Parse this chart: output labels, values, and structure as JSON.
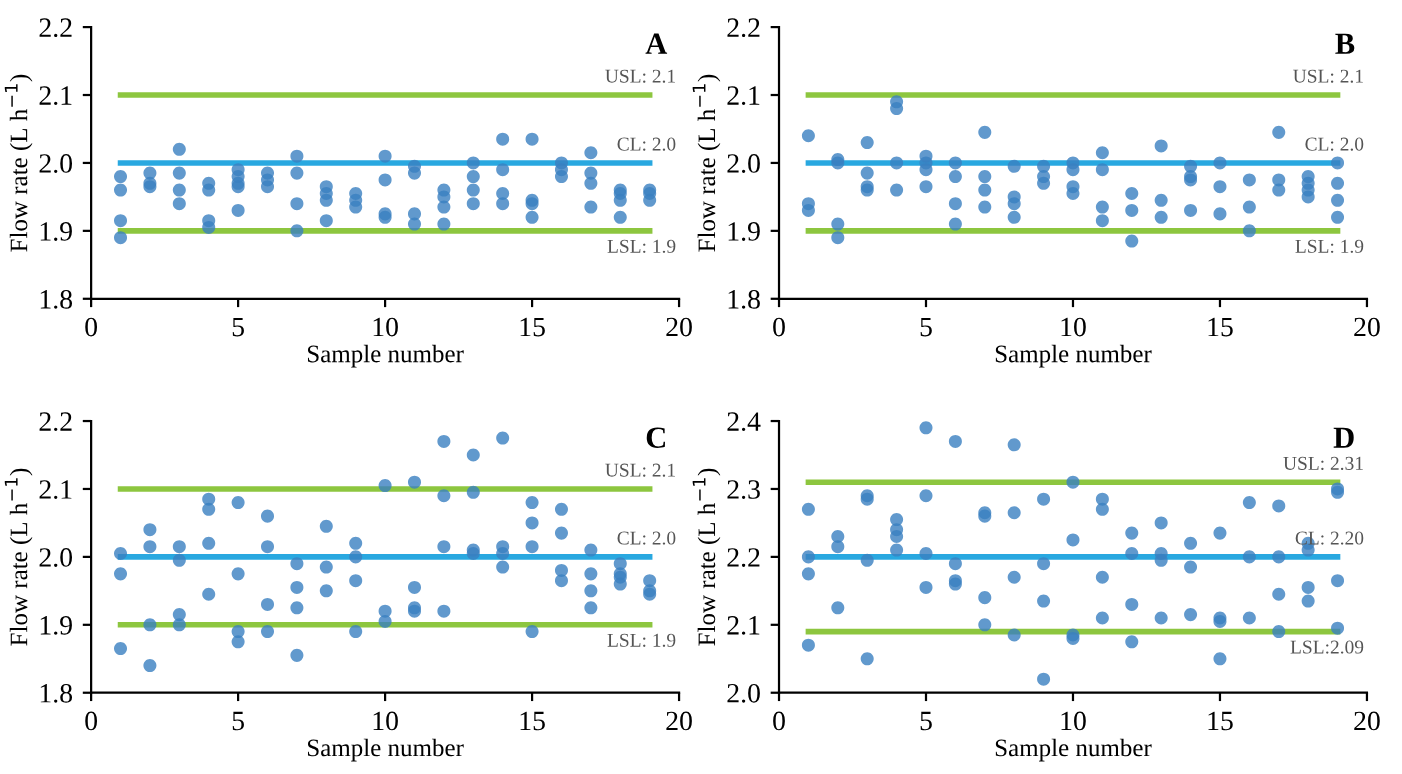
{
  "chart_data": [
    {
      "type": "scatter",
      "xlabel": "Sample number",
      "ylabel": "Flow rate (L h$^{−1}$)",
      "annotations": [
        "A"
      ],
      "xlim": [
        0,
        20
      ],
      "xticks": [
        0,
        5,
        10,
        15,
        20
      ],
      "ylim": [
        1.8,
        2.2
      ],
      "yticks": [
        {
          "value": 1.8,
          "label": "1.8"
        },
        {
          "value": 1.9,
          "label": "1.9"
        },
        {
          "value": 2.0,
          "label": "2.0"
        },
        {
          "value": 2.1,
          "label": "2.1"
        },
        {
          "value": 2.2,
          "label": "2.2"
        }
      ],
      "marker": "circle",
      "grid": false,
      "ref_lines": [
        {
          "axis": "y",
          "value": 2.1,
          "label": "USL: 2.1",
          "color": "#8dc63f"
        },
        {
          "axis": "y",
          "value": 2.0,
          "label": "CL: 2.0",
          "color": "#29a8e0"
        },
        {
          "axis": "y",
          "value": 1.9,
          "label": "LSL: 1.9",
          "color": "#8dc63f"
        }
      ],
      "series": [
        {
          "color": "#3a7fc0",
          "x": [
            1,
            1,
            1,
            1,
            2,
            2,
            2,
            3,
            3,
            3,
            3,
            4,
            4,
            4,
            4,
            5,
            5,
            5,
            5,
            5,
            6,
            6,
            6,
            7,
            7,
            7,
            7,
            8,
            8,
            8,
            8,
            9,
            9,
            9,
            10,
            10,
            10,
            10,
            11,
            11,
            11,
            11,
            12,
            12,
            12,
            12,
            13,
            13,
            13,
            13,
            14,
            14,
            14,
            14,
            15,
            15,
            15,
            15,
            16,
            16,
            16,
            17,
            17,
            17,
            17,
            18,
            18,
            18,
            18,
            19,
            19,
            19
          ],
          "values": [
            1.98,
            1.96,
            1.915,
            1.89,
            1.985,
            1.97,
            1.965,
            2.02,
            1.985,
            1.96,
            1.94,
            1.97,
            1.96,
            1.915,
            1.905,
            1.99,
            1.98,
            1.97,
            1.965,
            1.93,
            1.985,
            1.975,
            1.965,
            2.01,
            1.985,
            1.94,
            1.9,
            1.965,
            1.955,
            1.945,
            1.915,
            1.955,
            1.945,
            1.935,
            2.01,
            1.975,
            1.925,
            1.92,
            1.995,
            1.985,
            1.925,
            1.91,
            1.96,
            1.95,
            1.935,
            1.91,
            2.0,
            1.98,
            1.96,
            1.94,
            2.035,
            1.99,
            1.955,
            1.94,
            2.035,
            1.945,
            1.94,
            1.92,
            2.0,
            1.99,
            1.98,
            2.015,
            1.985,
            1.97,
            1.935,
            1.96,
            1.955,
            1.945,
            1.92,
            1.96,
            1.955,
            1.945
          ]
        }
      ]
    },
    {
      "type": "scatter",
      "xlabel": "Sample number",
      "ylabel": "Flow rate (L h$^{−1}$)",
      "annotations": [
        "B"
      ],
      "xlim": [
        0,
        20
      ],
      "xticks": [
        0,
        5,
        10,
        15,
        20
      ],
      "ylim": [
        1.8,
        2.2
      ],
      "yticks": [
        {
          "value": 1.8,
          "label": "1.8"
        },
        {
          "value": 1.9,
          "label": "1.9"
        },
        {
          "value": 2.0,
          "label": "2.0"
        },
        {
          "value": 2.1,
          "label": "2.1"
        },
        {
          "value": 2.2,
          "label": "2.2"
        }
      ],
      "marker": "circle",
      "grid": false,
      "ref_lines": [
        {
          "axis": "y",
          "value": 2.1,
          "label": "USL: 2.1",
          "color": "#8dc63f"
        },
        {
          "axis": "y",
          "value": 2.0,
          "label": "CL: 2.0",
          "color": "#29a8e0"
        },
        {
          "axis": "y",
          "value": 1.9,
          "label": "LSL: 1.9",
          "color": "#8dc63f"
        }
      ],
      "series": [
        {
          "color": "#3a7fc0",
          "x": [
            1,
            1,
            1,
            2,
            2,
            2,
            2,
            3,
            3,
            3,
            3,
            4,
            4,
            4,
            4,
            5,
            5,
            5,
            5,
            6,
            6,
            6,
            6,
            7,
            7,
            7,
            7,
            8,
            8,
            8,
            8,
            9,
            9,
            9,
            10,
            10,
            10,
            10,
            11,
            11,
            11,
            11,
            12,
            12,
            12,
            13,
            13,
            13,
            14,
            14,
            14,
            14,
            15,
            15,
            15,
            16,
            16,
            16,
            17,
            17,
            17,
            18,
            18,
            18,
            18,
            19,
            19,
            19,
            19
          ],
          "values": [
            2.04,
            1.94,
            1.93,
            2.005,
            2.0,
            1.91,
            1.89,
            2.03,
            1.985,
            1.965,
            1.96,
            2.09,
            2.08,
            2.0,
            1.96,
            2.01,
            2.0,
            1.99,
            1.965,
            2.0,
            1.98,
            1.94,
            1.91,
            2.045,
            1.98,
            1.96,
            1.935,
            1.995,
            1.95,
            1.94,
            1.92,
            1.995,
            1.98,
            1.97,
            2.0,
            1.99,
            1.965,
            1.955,
            2.015,
            1.99,
            1.935,
            1.915,
            1.955,
            1.93,
            1.885,
            2.025,
            1.945,
            1.92,
            1.995,
            1.98,
            1.975,
            1.93,
            2.0,
            1.965,
            1.925,
            1.975,
            1.935,
            1.9,
            2.045,
            1.975,
            1.96,
            1.98,
            1.97,
            1.96,
            1.95,
            2.0,
            1.97,
            1.945,
            1.92
          ]
        }
      ]
    },
    {
      "type": "scatter",
      "xlabel": "Sample number",
      "ylabel": "Flow rate (L h$^{−1}$)",
      "annotations": [
        "C"
      ],
      "xlim": [
        0,
        20
      ],
      "xticks": [
        0,
        5,
        10,
        15,
        20
      ],
      "ylim": [
        1.8,
        2.2
      ],
      "yticks": [
        {
          "value": 1.8,
          "label": "1.8"
        },
        {
          "value": 1.9,
          "label": "1.9"
        },
        {
          "value": 2.0,
          "label": "2.0"
        },
        {
          "value": 2.1,
          "label": "2.1"
        },
        {
          "value": 2.2,
          "label": "2.2"
        }
      ],
      "marker": "circle",
      "grid": false,
      "ref_lines": [
        {
          "axis": "y",
          "value": 2.1,
          "label": "USL: 2.1",
          "color": "#8dc63f"
        },
        {
          "axis": "y",
          "value": 2.0,
          "label": "CL: 2.0",
          "color": "#29a8e0"
        },
        {
          "axis": "y",
          "value": 1.9,
          "label": "LSL: 1.9",
          "color": "#8dc63f"
        }
      ],
      "series": [
        {
          "color": "#3a7fc0",
          "x": [
            1,
            1,
            1,
            2,
            2,
            2,
            2,
            3,
            3,
            3,
            3,
            4,
            4,
            4,
            4,
            5,
            5,
            5,
            5,
            6,
            6,
            6,
            6,
            7,
            7,
            7,
            7,
            8,
            8,
            8,
            9,
            9,
            9,
            9,
            10,
            10,
            10,
            11,
            11,
            11,
            11,
            12,
            12,
            12,
            12,
            13,
            13,
            13,
            13,
            14,
            14,
            14,
            14,
            15,
            15,
            15,
            15,
            16,
            16,
            16,
            16,
            17,
            17,
            17,
            17,
            18,
            18,
            18,
            18,
            19,
            19,
            19
          ],
          "values": [
            2.005,
            1.975,
            1.865,
            2.04,
            2.015,
            1.9,
            1.84,
            2.015,
            1.995,
            1.915,
            1.9,
            2.085,
            2.07,
            2.02,
            1.945,
            2.08,
            1.975,
            1.89,
            1.875,
            2.06,
            2.015,
            1.93,
            1.89,
            1.99,
            1.955,
            1.925,
            1.855,
            2.045,
            1.985,
            1.95,
            2.02,
            2.0,
            1.965,
            1.89,
            2.105,
            1.92,
            1.905,
            2.11,
            1.955,
            1.925,
            1.92,
            2.17,
            2.09,
            2.015,
            1.92,
            2.15,
            2.095,
            2.01,
            2.005,
            2.175,
            2.015,
            2.005,
            1.985,
            2.08,
            2.05,
            2.015,
            1.89,
            2.07,
            2.035,
            1.98,
            1.965,
            2.01,
            1.975,
            1.95,
            1.925,
            1.99,
            1.975,
            1.97,
            1.96,
            1.965,
            1.95,
            1.945
          ]
        }
      ]
    },
    {
      "type": "scatter",
      "xlabel": "Sample number",
      "ylabel": "Flow rate (L h$^{−1}$)",
      "annotations": [
        "D"
      ],
      "xlim": [
        0,
        20
      ],
      "xticks": [
        0,
        5,
        10,
        15,
        20
      ],
      "ylim": [
        2.0,
        2.4
      ],
      "yticks": [
        {
          "value": 2.0,
          "label": "2.0"
        },
        {
          "value": 2.1,
          "label": "2.1"
        },
        {
          "value": 2.2,
          "label": "2.2"
        },
        {
          "value": 2.3,
          "label": "2.3"
        },
        {
          "value": 2.4,
          "label": "2.4"
        }
      ],
      "marker": "circle",
      "grid": false,
      "ref_lines": [
        {
          "axis": "y",
          "value": 2.31,
          "label": "USL: 2.31",
          "color": "#8dc63f"
        },
        {
          "axis": "y",
          "value": 2.2,
          "label": "CL: 2.20",
          "color": "#29a8e0"
        },
        {
          "axis": "y",
          "value": 2.09,
          "label": "LSL:2.09",
          "color": "#8dc63f"
        }
      ],
      "series": [
        {
          "color": "#3a7fc0",
          "x": [
            1,
            1,
            1,
            1,
            2,
            2,
            2,
            3,
            3,
            3,
            3,
            4,
            4,
            4,
            4,
            5,
            5,
            5,
            5,
            6,
            6,
            6,
            6,
            7,
            7,
            7,
            7,
            8,
            8,
            8,
            8,
            9,
            9,
            9,
            9,
            10,
            10,
            10,
            10,
            11,
            11,
            11,
            11,
            12,
            12,
            12,
            12,
            13,
            13,
            13,
            13,
            14,
            14,
            14,
            15,
            15,
            15,
            15,
            16,
            16,
            16,
            17,
            17,
            17,
            17,
            18,
            18,
            18,
            18,
            19,
            19,
            19,
            19
          ],
          "values": [
            2.27,
            2.2,
            2.175,
            2.07,
            2.23,
            2.215,
            2.125,
            2.29,
            2.285,
            2.195,
            2.05,
            2.255,
            2.24,
            2.23,
            2.21,
            2.39,
            2.29,
            2.205,
            2.155,
            2.37,
            2.19,
            2.165,
            2.16,
            2.265,
            2.26,
            2.14,
            2.1,
            2.365,
            2.265,
            2.17,
            2.085,
            2.285,
            2.19,
            2.135,
            2.02,
            2.31,
            2.225,
            2.085,
            2.08,
            2.285,
            2.27,
            2.17,
            2.11,
            2.235,
            2.205,
            2.13,
            2.075,
            2.25,
            2.205,
            2.195,
            2.11,
            2.22,
            2.185,
            2.115,
            2.235,
            2.11,
            2.105,
            2.05,
            2.28,
            2.2,
            2.11,
            2.275,
            2.2,
            2.145,
            2.09,
            2.22,
            2.21,
            2.155,
            2.135,
            2.3,
            2.295,
            2.165,
            2.095
          ]
        }
      ]
    }
  ]
}
